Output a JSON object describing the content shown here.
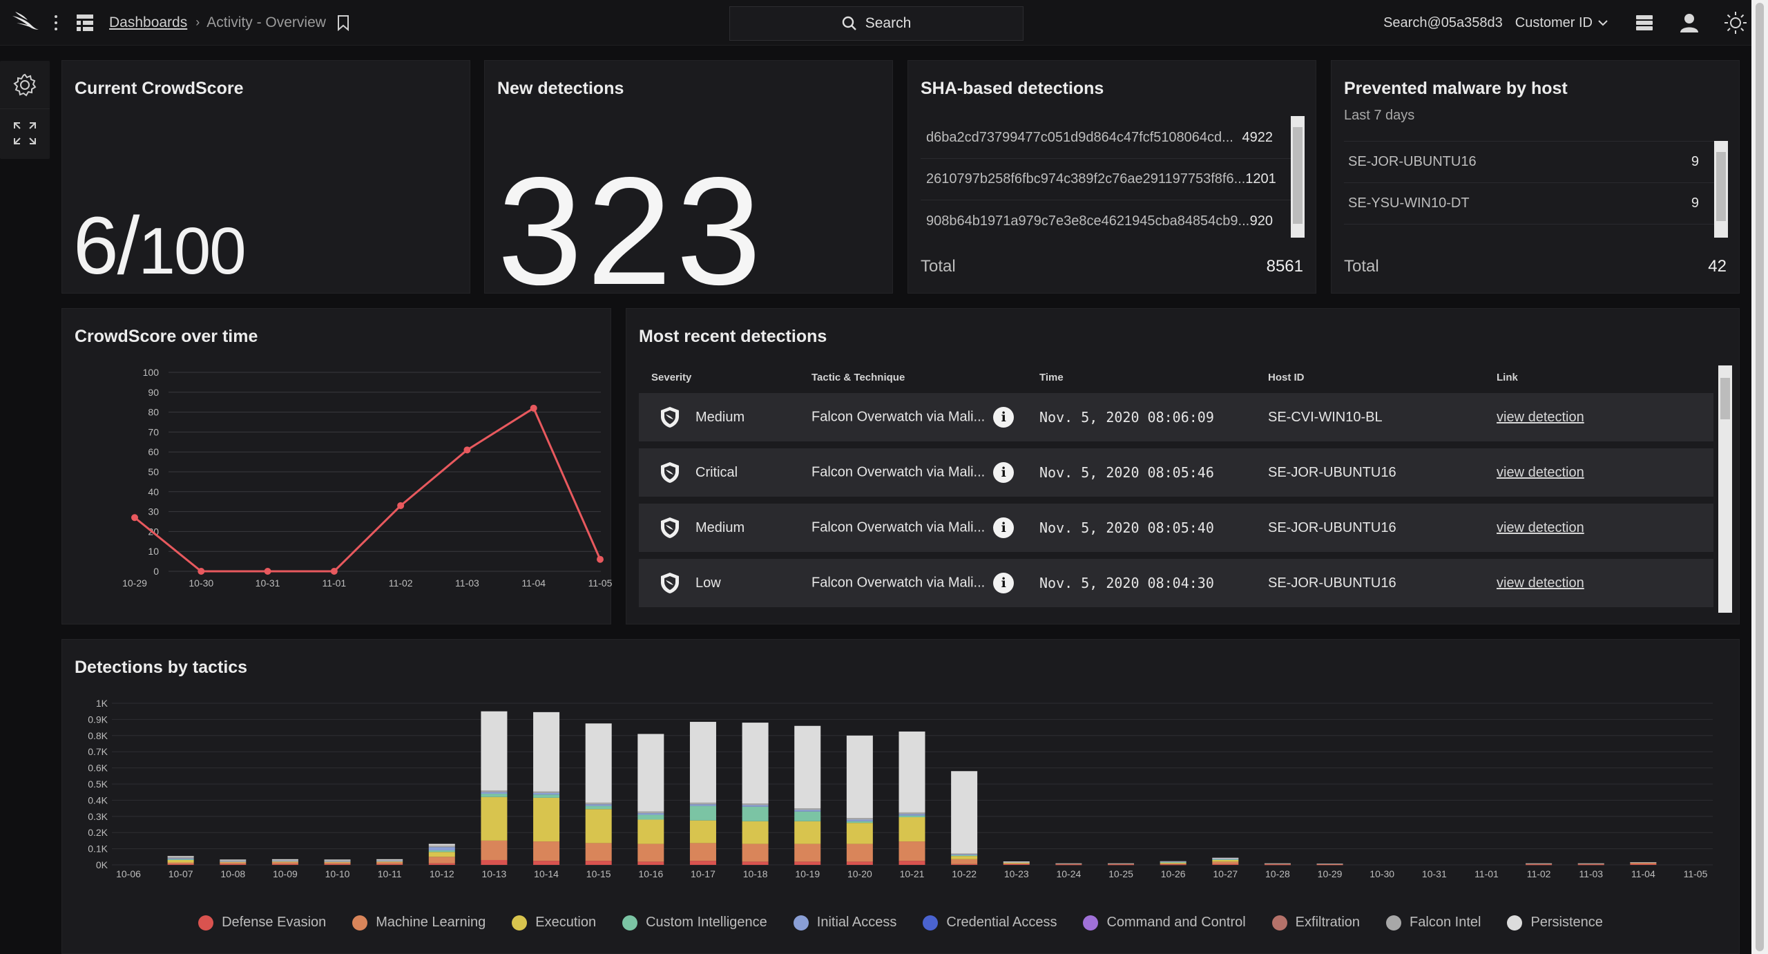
{
  "topbar": {
    "breadcrumb_link": "Dashboards",
    "breadcrumb_current": "Activity - Overview",
    "search_label": "Search",
    "user_label": "Search@05a358d3",
    "customer_label": "Customer ID"
  },
  "crowdscore": {
    "title": "Current CrowdScore",
    "value": "6",
    "denominator": "100"
  },
  "new_detections": {
    "title": "New detections",
    "value": "323"
  },
  "sha_detections": {
    "title": "SHA-based detections",
    "rows": [
      {
        "hash": "d6ba2cd73799477c051d9d864c47fcf5108064cd...",
        "count": "4922"
      },
      {
        "hash": "2610797b258f6fbc974c389f2c76ae291197753f8f6...",
        "count": "1201"
      },
      {
        "hash": "908b64b1971a979c7e3e8ce4621945cba84854cb9...",
        "count": "920"
      }
    ],
    "total_label": "Total",
    "total_value": "8561"
  },
  "prevented_malware": {
    "title": "Prevented malware by host",
    "subtitle": "Last 7 days",
    "rows": [
      {
        "host": "SE-JOR-UBUNTU16",
        "count": "9"
      },
      {
        "host": "SE-YSU-WIN10-DT",
        "count": "9"
      }
    ],
    "total_label": "Total",
    "total_value": "42"
  },
  "crowdscore_over_time": {
    "title": "CrowdScore over time"
  },
  "recent_detections": {
    "title": "Most recent detections",
    "headers": [
      "Severity",
      "Tactic & Technique",
      "Time",
      "Host ID",
      "Link"
    ],
    "rows": [
      {
        "severity": "Medium",
        "tactic": "Falcon Overwatch via Mali...",
        "time": "Nov. 5, 2020 08:06:09",
        "host": "SE-CVI-WIN10-BL",
        "link": "view detection"
      },
      {
        "severity": "Critical",
        "tactic": "Falcon Overwatch via Mali...",
        "time": "Nov. 5, 2020 08:05:46",
        "host": "SE-JOR-UBUNTU16",
        "link": "view detection"
      },
      {
        "severity": "Medium",
        "tactic": "Falcon Overwatch via Mali...",
        "time": "Nov. 5, 2020 08:05:40",
        "host": "SE-JOR-UBUNTU16",
        "link": "view detection"
      },
      {
        "severity": "Low",
        "tactic": "Falcon Overwatch via Mali...",
        "time": "Nov. 5, 2020 08:04:30",
        "host": "SE-JOR-UBUNTU16",
        "link": "view detection"
      }
    ]
  },
  "detections_by_tactics": {
    "title": "Detections by tactics",
    "legend": [
      {
        "name": "Defense Evasion",
        "color": "#d9534f"
      },
      {
        "name": "Machine Learning",
        "color": "#d9855a"
      },
      {
        "name": "Execution",
        "color": "#d8c44e"
      },
      {
        "name": "Custom Intelligence",
        "color": "#7bc4a4"
      },
      {
        "name": "Initial Access",
        "color": "#8a9fd6"
      },
      {
        "name": "Credential Access",
        "color": "#4a63d0"
      },
      {
        "name": "Command and Control",
        "color": "#a071d8"
      },
      {
        "name": "Exfiltration",
        "color": "#b5726a"
      },
      {
        "name": "Falcon Intel",
        "color": "#a8a8a8"
      },
      {
        "name": "Persistence",
        "color": "#dcdcdc"
      }
    ]
  },
  "chart_data": [
    {
      "type": "line",
      "title": "CrowdScore over time",
      "x": [
        "10-29",
        "10-30",
        "10-31",
        "11-01",
        "11-02",
        "11-03",
        "11-04",
        "11-05"
      ],
      "series": [
        {
          "values": [
            27,
            0,
            0,
            0,
            33,
            61,
            82,
            6
          ]
        }
      ],
      "ylim": [
        0,
        100
      ],
      "yticks": [
        0,
        10,
        20,
        30,
        40,
        50,
        60,
        70,
        80,
        90,
        100
      ],
      "grid": true,
      "color": "#e8595e"
    },
    {
      "type": "bar",
      "stacked": true,
      "title": "Detections by tactics",
      "categories": [
        "10-06",
        "10-07",
        "10-08",
        "10-09",
        "10-10",
        "10-11",
        "10-12",
        "10-13",
        "10-14",
        "10-15",
        "10-16",
        "10-17",
        "10-18",
        "10-19",
        "10-20",
        "10-21",
        "10-22",
        "10-23",
        "10-24",
        "10-25",
        "10-26",
        "10-27",
        "10-28",
        "10-29",
        "10-30",
        "10-31",
        "11-01",
        "11-02",
        "11-03",
        "11-04",
        "11-05"
      ],
      "yticks": [
        "0K",
        "0.1K",
        "0.2K",
        "0.3K",
        "0.4K",
        "0.5K",
        "0.6K",
        "0.7K",
        "0.8K",
        "0.9K",
        "1K"
      ],
      "ylim": [
        0,
        1000
      ],
      "series": [
        {
          "name": "Defense Evasion",
          "values": [
            0,
            5,
            5,
            5,
            5,
            5,
            10,
            30,
            25,
            25,
            20,
            25,
            20,
            20,
            20,
            25,
            5,
            5,
            3,
            3,
            3,
            5,
            3,
            3,
            0,
            0,
            0,
            3,
            3,
            5,
            0
          ]
        },
        {
          "name": "Machine Learning",
          "values": [
            0,
            10,
            10,
            12,
            10,
            12,
            40,
            120,
            120,
            110,
            110,
            110,
            110,
            110,
            110,
            120,
            30,
            5,
            5,
            5,
            5,
            15,
            5,
            3,
            0,
            0,
            0,
            5,
            5,
            10,
            0
          ]
        },
        {
          "name": "Execution",
          "values": [
            0,
            15,
            5,
            5,
            5,
            5,
            30,
            270,
            270,
            210,
            150,
            140,
            140,
            140,
            130,
            150,
            20,
            3,
            0,
            0,
            5,
            10,
            0,
            0,
            0,
            0,
            0,
            0,
            0,
            0,
            0
          ]
        },
        {
          "name": "Custom Intelligence",
          "values": [
            0,
            5,
            0,
            0,
            0,
            0,
            10,
            20,
            20,
            20,
            30,
            90,
            90,
            60,
            10,
            10,
            5,
            0,
            0,
            0,
            5,
            5,
            0,
            0,
            0,
            0,
            0,
            0,
            0,
            0,
            0
          ]
        },
        {
          "name": "Initial Access",
          "values": [
            0,
            5,
            3,
            3,
            3,
            3,
            20,
            10,
            10,
            10,
            10,
            10,
            10,
            10,
            10,
            10,
            5,
            0,
            0,
            0,
            3,
            3,
            0,
            0,
            0,
            0,
            0,
            0,
            0,
            0,
            0
          ]
        },
        {
          "name": "Falcon Intel",
          "values": [
            0,
            10,
            5,
            5,
            5,
            5,
            10,
            10,
            10,
            10,
            10,
            10,
            10,
            10,
            10,
            10,
            5,
            5,
            2,
            2,
            2,
            3,
            2,
            2,
            0,
            0,
            0,
            2,
            2,
            2,
            0
          ]
        },
        {
          "name": "Persistence",
          "values": [
            0,
            5,
            5,
            5,
            5,
            5,
            10,
            490,
            490,
            490,
            480,
            500,
            500,
            510,
            510,
            500,
            510,
            3,
            0,
            0,
            0,
            3,
            0,
            0,
            0,
            0,
            0,
            0,
            0,
            0,
            0
          ]
        }
      ]
    }
  ]
}
